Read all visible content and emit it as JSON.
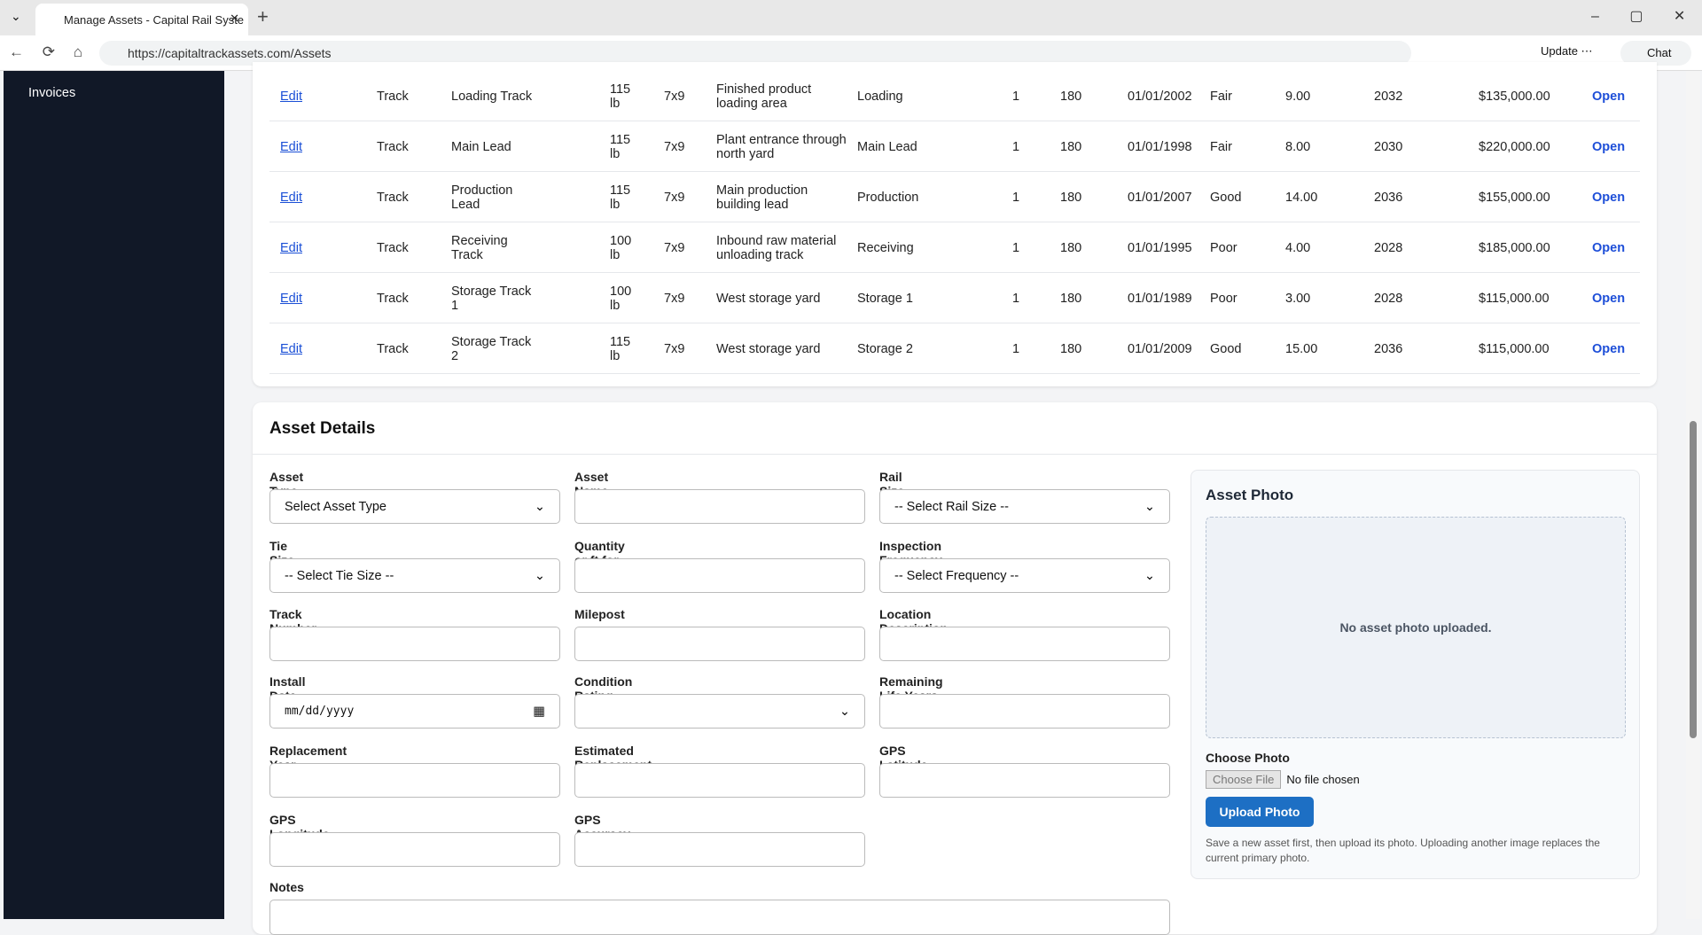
{
  "browser": {
    "tab_title": "Manage Assets - Capital Rail Syste",
    "url": "https://capitaltrackassets.com/Assets",
    "update": "Update",
    "chat": "Chat"
  },
  "sidebar": {
    "items": [
      "Invoices"
    ]
  },
  "table": {
    "rows": [
      [
        "Edit",
        "Track",
        "Loading Track",
        "115 lb",
        "7x9",
        "Finished product loading area",
        "Loading",
        "1",
        "180",
        "01/01/2002",
        "Fair",
        "9.00",
        "2032",
        "$135,000.00",
        "Open"
      ],
      [
        "Edit",
        "Track",
        "Main Lead",
        "115 lb",
        "7x9",
        "Plant entrance through north yard",
        "Main Lead",
        "1",
        "180",
        "01/01/1998",
        "Fair",
        "8.00",
        "2030",
        "$220,000.00",
        "Open"
      ],
      [
        "Edit",
        "Track",
        "Production Lead",
        "115 lb",
        "7x9",
        "Main production building lead",
        "Production",
        "1",
        "180",
        "01/01/2007",
        "Good",
        "14.00",
        "2036",
        "$155,000.00",
        "Open"
      ],
      [
        "Edit",
        "Track",
        "Receiving Track",
        "100 lb",
        "7x9",
        "Inbound raw material unloading track",
        "Receiving",
        "1",
        "180",
        "01/01/1995",
        "Poor",
        "4.00",
        "2028",
        "$185,000.00",
        "Open"
      ],
      [
        "Edit",
        "Track",
        "Storage Track 1",
        "100 lb",
        "7x9",
        "West storage yard",
        "Storage 1",
        "1",
        "180",
        "01/01/1989",
        "Poor",
        "3.00",
        "2028",
        "$115,000.00",
        "Open"
      ],
      [
        "Edit",
        "Track",
        "Storage Track 2",
        "115 lb",
        "7x9",
        "West storage yard",
        "Storage 2",
        "1",
        "180",
        "01/01/2009",
        "Good",
        "15.00",
        "2036",
        "$115,000.00",
        "Open"
      ]
    ]
  },
  "form": {
    "title": "Asset Details",
    "fields": [
      {
        "label": "Asset Type",
        "kind": "select",
        "placeholder": "Select Asset Type"
      },
      {
        "label": "Asset Name",
        "kind": "input"
      },
      {
        "label": "Rail Size",
        "kind": "select",
        "placeholder": "-- Select Rail Size --"
      },
      {
        "label": "Tie Size",
        "kind": "select",
        "placeholder": "-- Select Tie Size --"
      },
      {
        "label": "Quantity or ft for Track",
        "kind": "input"
      },
      {
        "label": "Inspection Frequency",
        "kind": "select",
        "placeholder": "-- Select Frequency --"
      },
      {
        "label": "Track Number",
        "kind": "input"
      },
      {
        "label": "Milepost",
        "kind": "input"
      },
      {
        "label": "Location Description",
        "kind": "input"
      },
      {
        "label": "Install Date",
        "kind": "date",
        "placeholder": "mm/dd/yyyy"
      },
      {
        "label": "Condition Rating",
        "kind": "select"
      },
      {
        "label": "Remaining Life Years",
        "kind": "input"
      },
      {
        "label": "Replacement Year",
        "kind": "input"
      },
      {
        "label": "Estimated Replacement Cost",
        "kind": "input"
      },
      {
        "label": "GPS Latitude",
        "kind": "input"
      },
      {
        "label": "GPS Longitude",
        "kind": "input"
      },
      {
        "label": "GPS Accuracy",
        "kind": "input"
      }
    ],
    "notes_label": "Notes"
  },
  "photo": {
    "title": "Asset Photo",
    "empty": "No asset photo uploaded.",
    "choose_label": "Choose Photo",
    "choose_button": "Choose File",
    "no_file": "No file chosen",
    "upload": "Upload Photo",
    "help": "Save a new asset first, then upload its photo. Uploading another image replaces the current primary photo."
  }
}
